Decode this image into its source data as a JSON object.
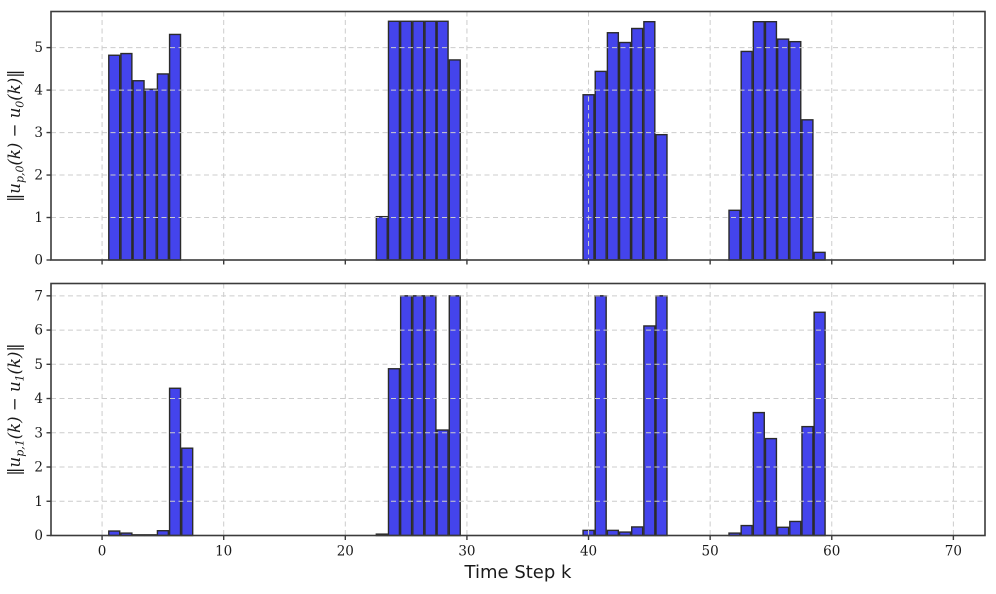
{
  "figure": {
    "background": "#ffffff",
    "bar_fill": "#4444ec",
    "bar_edge": "#2b2b2b",
    "grid_color": "#cccccc",
    "spine_color": "#3b3b3b",
    "text_color": "#1a1a1a"
  },
  "chart_data": [
    {
      "type": "bar",
      "title": "",
      "xlabel": "",
      "ylabel": "‖u_p,0(k) − u_0(k)‖",
      "ylabel_parts": [
        {
          "t": "‖u"
        },
        {
          "sub": "p,0"
        },
        {
          "t": "(k) − u"
        },
        {
          "sub": "0"
        },
        {
          "t": "(k)‖"
        }
      ],
      "xlim": [
        -4.2,
        72.6
      ],
      "ylim": [
        0,
        5.85
      ],
      "xticks": [
        0,
        10,
        20,
        30,
        40,
        50,
        60,
        70
      ],
      "yticks": [
        0,
        1,
        2,
        3,
        4,
        5
      ],
      "grid": "dashed",
      "bar_width": 0.9,
      "x": [
        1,
        2,
        3,
        4,
        5,
        6,
        23,
        24,
        25,
        26,
        27,
        28,
        29,
        40,
        41,
        42,
        43,
        44,
        45,
        46,
        52,
        53,
        54,
        55,
        56,
        57,
        58,
        59
      ],
      "values": [
        4.82,
        4.86,
        4.22,
        4.02,
        4.38,
        5.31,
        1.02,
        5.62,
        5.62,
        5.62,
        5.62,
        5.62,
        4.71,
        3.89,
        4.44,
        5.35,
        5.12,
        5.45,
        5.61,
        2.95,
        1.17,
        4.91,
        5.61,
        5.61,
        5.2,
        5.14,
        3.3,
        0.18
      ]
    },
    {
      "type": "bar",
      "title": "",
      "xlabel": "Time Step k",
      "ylabel": "‖u_p,1(k) − u_1(k)‖",
      "ylabel_parts": [
        {
          "t": "‖u"
        },
        {
          "sub": "p,1"
        },
        {
          "t": "(k) − u"
        },
        {
          "sub": "1"
        },
        {
          "t": "(k)‖"
        }
      ],
      "xlim": [
        -4.2,
        72.6
      ],
      "ylim": [
        0,
        7.36
      ],
      "xticks": [
        0,
        10,
        20,
        30,
        40,
        50,
        60,
        70
      ],
      "yticks": [
        0,
        1,
        2,
        3,
        4,
        5,
        6,
        7
      ],
      "grid": "dashed",
      "bar_width": 0.9,
      "x": [
        1,
        2,
        3,
        4,
        5,
        6,
        7,
        23,
        24,
        25,
        26,
        27,
        28,
        29,
        40,
        41,
        42,
        43,
        44,
        45,
        46,
        52,
        53,
        54,
        55,
        56,
        57,
        58,
        59
      ],
      "values": [
        0.13,
        0.07,
        0.02,
        0.02,
        0.14,
        4.3,
        2.55,
        0.04,
        4.87,
        7.0,
        7.0,
        7.0,
        3.08,
        7.0,
        0.15,
        7.0,
        0.15,
        0.1,
        0.25,
        6.12,
        7.0,
        0.07,
        0.29,
        3.59,
        2.83,
        0.24,
        0.41,
        3.18,
        6.52
      ]
    }
  ]
}
